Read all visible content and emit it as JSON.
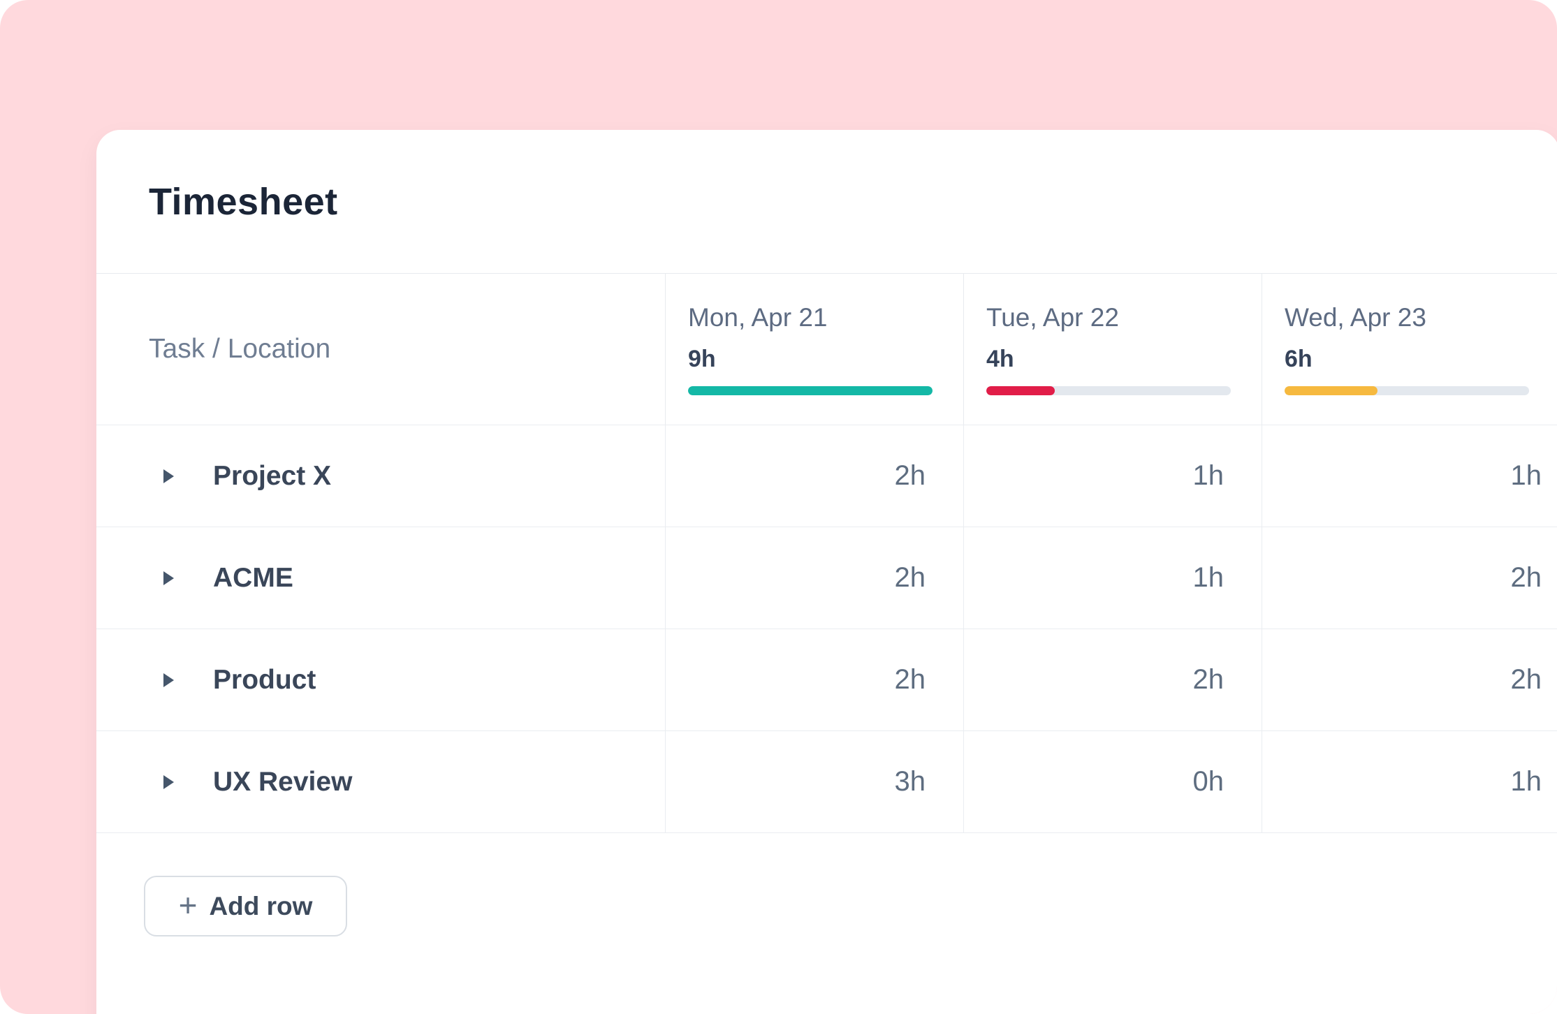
{
  "card": {
    "title": "Timesheet"
  },
  "table": {
    "task_header": "Task / Location",
    "days": [
      {
        "label": "Mon, Apr 21",
        "total": "9h",
        "progress_pct": 100,
        "bar_color": "#14B8A6"
      },
      {
        "label": "Tue, Apr 22",
        "total": "4h",
        "progress_pct": 28,
        "bar_color": "#E11D48"
      },
      {
        "label": "Wed, Apr 23",
        "total": "6h",
        "progress_pct": 38,
        "bar_color": "#F6B93F"
      }
    ],
    "rows": [
      {
        "task": "Project X",
        "values": [
          "2h",
          "1h",
          "1h"
        ]
      },
      {
        "task": "ACME",
        "values": [
          "2h",
          "1h",
          "2h"
        ]
      },
      {
        "task": "Product",
        "values": [
          "2h",
          "2h",
          "2h"
        ]
      },
      {
        "task": "UX Review",
        "values": [
          "3h",
          "0h",
          "1h"
        ]
      }
    ]
  },
  "add_row": {
    "icon": "+",
    "label": "Add row"
  },
  "colors": {
    "background_pink": "#FFD9DD",
    "track_gray": "#E3E8EE",
    "teal": "#14B8A6",
    "red": "#E11D48",
    "amber": "#F6B93F"
  }
}
